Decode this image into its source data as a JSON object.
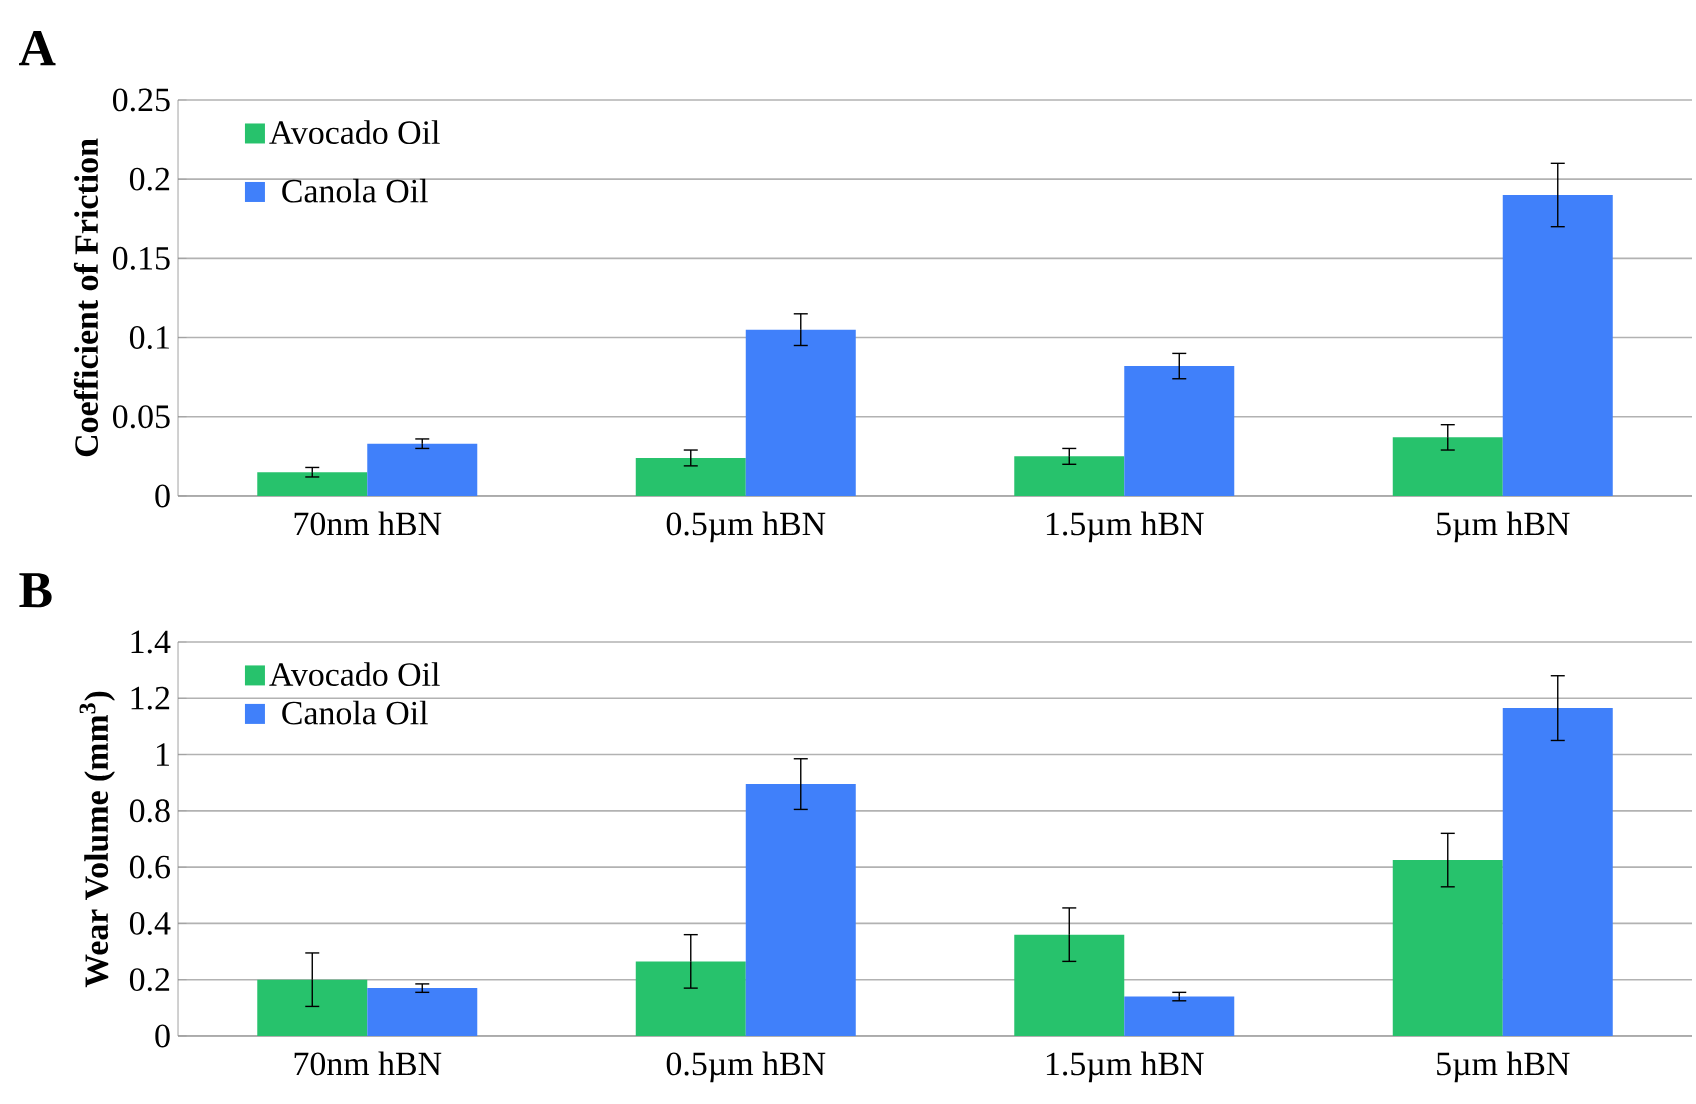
{
  "chart_data": [
    {
      "type": "bar",
      "title": "A",
      "ylabel": "Coefficient of Friction",
      "categories": [
        "70nm hBN",
        "0.5µm hBN",
        "1.5µm hBN",
        "5µm hBN"
      ],
      "series": [
        {
          "name": "Avocado Oil",
          "color": "#27c26c",
          "values": [
            0.015,
            0.024,
            0.025,
            0.037
          ],
          "errors": [
            0.003,
            0.005,
            0.005,
            0.008
          ]
        },
        {
          "name": "Canola Oil",
          "color": "#4080fa",
          "values": [
            0.033,
            0.105,
            0.082,
            0.19
          ],
          "errors": [
            0.003,
            0.01,
            0.008,
            0.02
          ]
        }
      ],
      "ylim": [
        0,
        0.25
      ],
      "yticks": [
        0,
        0.05,
        0.1,
        0.15,
        0.2,
        0.25
      ],
      "grid": "y",
      "legend": "top left"
    },
    {
      "type": "bar",
      "title": "B",
      "ylabel": "Wear Volume (mm$^{3}$)",
      "categories": [
        "70nm hBN",
        "0.5µm hBN",
        "1.5µm hBN",
        "5µm hBN"
      ],
      "series": [
        {
          "name": "Avocado Oil",
          "color": "#27c26c",
          "values": [
            0.2,
            0.265,
            0.36,
            0.625
          ],
          "errors": [
            0.095,
            0.095,
            0.095,
            0.095
          ]
        },
        {
          "name": "Canola Oil",
          "color": "#4080fa",
          "values": [
            0.17,
            0.895,
            0.14,
            1.165
          ],
          "errors": [
            0.015,
            0.09,
            0.015,
            0.115
          ]
        }
      ],
      "ylim": [
        0,
        1.4
      ],
      "yticks": [
        0,
        0.2,
        0.4,
        0.6,
        0.8,
        1,
        1.2,
        1.4
      ],
      "grid": "y",
      "legend": "top left"
    }
  ]
}
